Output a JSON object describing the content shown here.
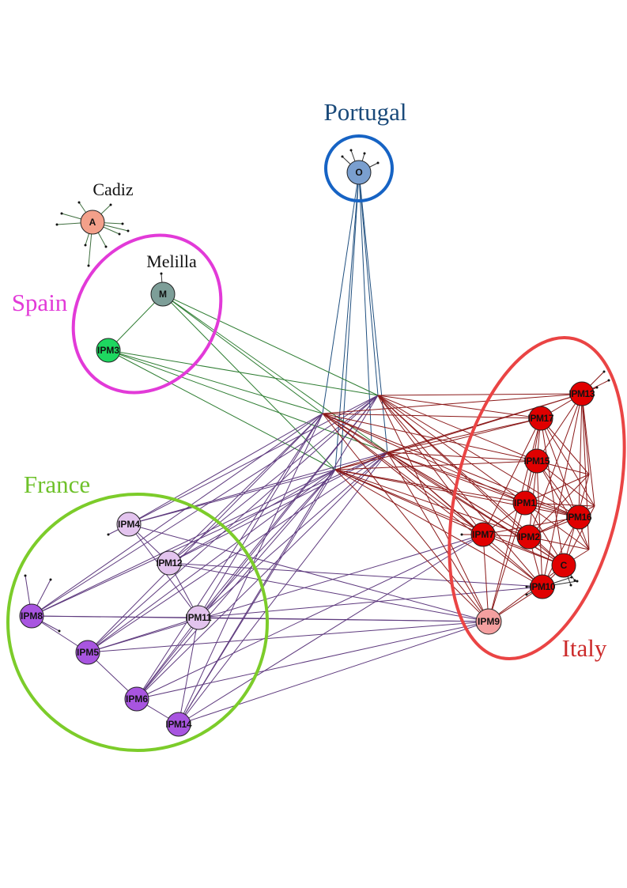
{
  "regions": {
    "portugal": {
      "label": "Portugal",
      "color": "#1a4a7a",
      "ring_color": "#1663c4"
    },
    "spain": {
      "label": "Spain",
      "color": "#e23ad8",
      "ring_color": "#e23ad8"
    },
    "france": {
      "label": "France",
      "color": "#6ec12a",
      "ring_color": "#7ccc2a"
    },
    "italy": {
      "label": "Italy",
      "color": "#cc2b2b",
      "ring_color": "#ea4444"
    }
  },
  "places": {
    "cadiz": "Cadiz",
    "melilla": "Melilla"
  },
  "edge_colors": {
    "portugal": "#1f4f7f",
    "spain": "#2e7d32",
    "france": "#5e3a7e",
    "italy": "#8b1a1a",
    "cadiz": "#3f6f3f"
  },
  "nodes": [
    {
      "id": "O",
      "label": "O",
      "color": "#7a9fcf"
    },
    {
      "id": "A",
      "label": "A",
      "color": "#f3a08a"
    },
    {
      "id": "M",
      "label": "M",
      "color": "#7d9e98"
    },
    {
      "id": "IPM3",
      "label": "IPM3",
      "color": "#1ed760"
    },
    {
      "id": "IPM4",
      "label": "IPM4",
      "color": "#e3c4ee"
    },
    {
      "id": "IPM12",
      "label": "IPM12",
      "color": "#e3c4ee"
    },
    {
      "id": "IPM11",
      "label": "IPM11",
      "color": "#e3c4ee"
    },
    {
      "id": "IPM8",
      "label": "IPM8",
      "color": "#a855e0"
    },
    {
      "id": "IPM5",
      "label": "IPM5",
      "color": "#a855e0"
    },
    {
      "id": "IPM6",
      "label": "IPM6",
      "color": "#a855e0"
    },
    {
      "id": "IPM14",
      "label": "IPM14",
      "color": "#a855e0"
    },
    {
      "id": "IPM13",
      "label": "IPM13",
      "color": "#e00000"
    },
    {
      "id": "IPM17",
      "label": "IPM17",
      "color": "#e00000"
    },
    {
      "id": "IPM15",
      "label": "IPM15",
      "color": "#e00000"
    },
    {
      "id": "IPM1",
      "label": "IPM1",
      "color": "#e00000"
    },
    {
      "id": "IPM16",
      "label": "IPM16",
      "color": "#e00000"
    },
    {
      "id": "IPM7",
      "label": "IPM7",
      "color": "#e00000"
    },
    {
      "id": "IPM2",
      "label": "IPM2",
      "color": "#e00000"
    },
    {
      "id": "C",
      "label": "C",
      "color": "#e00000"
    },
    {
      "id": "IPM10",
      "label": "IPM10",
      "color": "#e00000"
    },
    {
      "id": "IPM9",
      "label": "IPM9",
      "color": "#f4a0a0"
    }
  ]
}
